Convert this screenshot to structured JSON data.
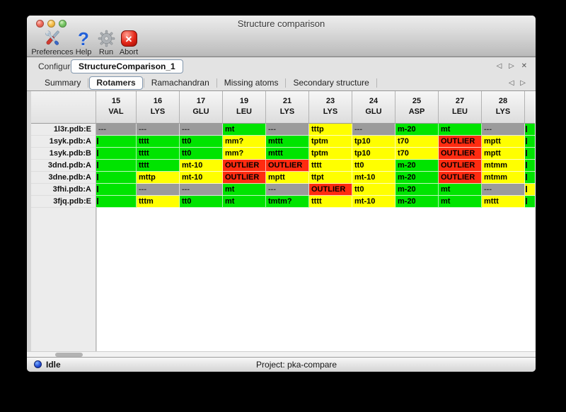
{
  "window": {
    "title": "Structure comparison"
  },
  "toolbar": {
    "items": [
      {
        "label": "Preferences",
        "icon": "tools-icon"
      },
      {
        "label": "Help",
        "icon": "question-icon"
      },
      {
        "label": "Run",
        "icon": "gear-icon"
      },
      {
        "label": "Abort",
        "icon": "abort-icon"
      }
    ]
  },
  "icons": {
    "prev": "◁",
    "next": "▷",
    "close": "✕",
    "abort_glyph": "✕",
    "help_glyph": "?"
  },
  "configure": {
    "label": "Configure",
    "value": "StructureComparison_1"
  },
  "tabs": {
    "items": [
      "Summary",
      "Rotamers",
      "Ramachandran",
      "Missing atoms",
      "Secondary structure"
    ],
    "selected": "Rotamers"
  },
  "table": {
    "columns": [
      {
        "num": "15",
        "res": "VAL"
      },
      {
        "num": "16",
        "res": "LYS"
      },
      {
        "num": "17",
        "res": "GLU"
      },
      {
        "num": "19",
        "res": "LEU"
      },
      {
        "num": "21",
        "res": "LYS"
      },
      {
        "num": "23",
        "res": "LYS"
      },
      {
        "num": "24",
        "res": "GLU"
      },
      {
        "num": "25",
        "res": "ASP"
      },
      {
        "num": "27",
        "res": "LEU"
      },
      {
        "num": "28",
        "res": "LYS"
      },
      {
        "num": "",
        "res": ""
      }
    ],
    "rows": [
      {
        "label": "1l3r.pdb:E",
        "cells": [
          {
            "t": "---",
            "bg": "gray"
          },
          {
            "t": "---",
            "bg": "gray"
          },
          {
            "t": "---",
            "bg": "gray"
          },
          {
            "t": "mt",
            "bg": "green"
          },
          {
            "t": "---",
            "bg": "gray"
          },
          {
            "t": "tttp",
            "bg": "yellow"
          },
          {
            "t": "---",
            "bg": "gray"
          },
          {
            "t": "m-20",
            "bg": "green"
          },
          {
            "t": "mt",
            "bg": "green"
          },
          {
            "t": "---",
            "bg": "gray"
          },
          {
            "t": "",
            "bg": "green",
            "clip": true
          }
        ]
      },
      {
        "label": "1syk.pdb:A",
        "cells": [
          {
            "t": "",
            "bg": "green",
            "clip": true
          },
          {
            "t": "tttt",
            "bg": "green"
          },
          {
            "t": "tt0",
            "bg": "green"
          },
          {
            "t": "mm?",
            "bg": "yellow"
          },
          {
            "t": "mttt",
            "bg": "green"
          },
          {
            "t": "tptm",
            "bg": "yellow"
          },
          {
            "t": "tp10",
            "bg": "yellow"
          },
          {
            "t": "t70",
            "bg": "yellow"
          },
          {
            "t": "OUTLIER",
            "bg": "red"
          },
          {
            "t": "mptt",
            "bg": "yellow"
          },
          {
            "t": "",
            "bg": "green",
            "clip": true
          }
        ]
      },
      {
        "label": "1syk.pdb:B",
        "cells": [
          {
            "t": "",
            "bg": "green",
            "clip": true
          },
          {
            "t": "tttt",
            "bg": "green"
          },
          {
            "t": "tt0",
            "bg": "green"
          },
          {
            "t": "mm?",
            "bg": "yellow"
          },
          {
            "t": "mttt",
            "bg": "green"
          },
          {
            "t": "tptm",
            "bg": "yellow"
          },
          {
            "t": "tp10",
            "bg": "yellow"
          },
          {
            "t": "t70",
            "bg": "yellow"
          },
          {
            "t": "OUTLIER",
            "bg": "red"
          },
          {
            "t": "mptt",
            "bg": "yellow"
          },
          {
            "t": "",
            "bg": "green",
            "clip": true
          }
        ]
      },
      {
        "label": "3dnd.pdb:A",
        "cells": [
          {
            "t": "",
            "bg": "green",
            "clip": true
          },
          {
            "t": "tttt",
            "bg": "green"
          },
          {
            "t": "mt-10",
            "bg": "yellow"
          },
          {
            "t": "OUTLIER",
            "bg": "red"
          },
          {
            "t": "OUTLIER",
            "bg": "red"
          },
          {
            "t": "tttt",
            "bg": "yellow"
          },
          {
            "t": "tt0",
            "bg": "yellow"
          },
          {
            "t": "m-20",
            "bg": "green"
          },
          {
            "t": "OUTLIER",
            "bg": "red"
          },
          {
            "t": "mtmm",
            "bg": "yellow"
          },
          {
            "t": "",
            "bg": "green",
            "clip": true
          }
        ]
      },
      {
        "label": "3dne.pdb:A",
        "cells": [
          {
            "t": "",
            "bg": "green",
            "clip": true
          },
          {
            "t": "mttp",
            "bg": "yellow"
          },
          {
            "t": "mt-10",
            "bg": "yellow"
          },
          {
            "t": "OUTLIER",
            "bg": "red"
          },
          {
            "t": "mptt",
            "bg": "yellow"
          },
          {
            "t": "ttpt",
            "bg": "yellow"
          },
          {
            "t": "mt-10",
            "bg": "yellow"
          },
          {
            "t": "m-20",
            "bg": "green"
          },
          {
            "t": "OUTLIER",
            "bg": "red"
          },
          {
            "t": "mtmm",
            "bg": "yellow"
          },
          {
            "t": "",
            "bg": "green",
            "clip": true
          }
        ]
      },
      {
        "label": "3fhi.pdb:A",
        "cells": [
          {
            "t": "",
            "bg": "green",
            "clip": true
          },
          {
            "t": "---",
            "bg": "gray"
          },
          {
            "t": "---",
            "bg": "gray"
          },
          {
            "t": "mt",
            "bg": "green"
          },
          {
            "t": "---",
            "bg": "gray"
          },
          {
            "t": "OUTLIER",
            "bg": "red"
          },
          {
            "t": "tt0",
            "bg": "yellow"
          },
          {
            "t": "m-20",
            "bg": "green"
          },
          {
            "t": "mt",
            "bg": "green"
          },
          {
            "t": "---",
            "bg": "gray"
          },
          {
            "t": "",
            "bg": "yellow",
            "clip": true
          }
        ]
      },
      {
        "label": "3fjq.pdb:E",
        "cells": [
          {
            "t": "",
            "bg": "green",
            "clip": true
          },
          {
            "t": "tttm",
            "bg": "yellow"
          },
          {
            "t": "tt0",
            "bg": "green"
          },
          {
            "t": "mt",
            "bg": "green"
          },
          {
            "t": "tmtm?",
            "bg": "green"
          },
          {
            "t": "tttt",
            "bg": "yellow"
          },
          {
            "t": "mt-10",
            "bg": "yellow"
          },
          {
            "t": "m-20",
            "bg": "green"
          },
          {
            "t": "mt",
            "bg": "green"
          },
          {
            "t": "mttt",
            "bg": "yellow"
          },
          {
            "t": "",
            "bg": "green",
            "clip": true
          }
        ]
      }
    ]
  },
  "status": {
    "state": "Idle",
    "project": "Project: pka-compare"
  },
  "colors": {
    "green": "#00e400",
    "yellow": "#ffff00",
    "red": "#ff2b10",
    "gray": "#9b9b9b"
  }
}
